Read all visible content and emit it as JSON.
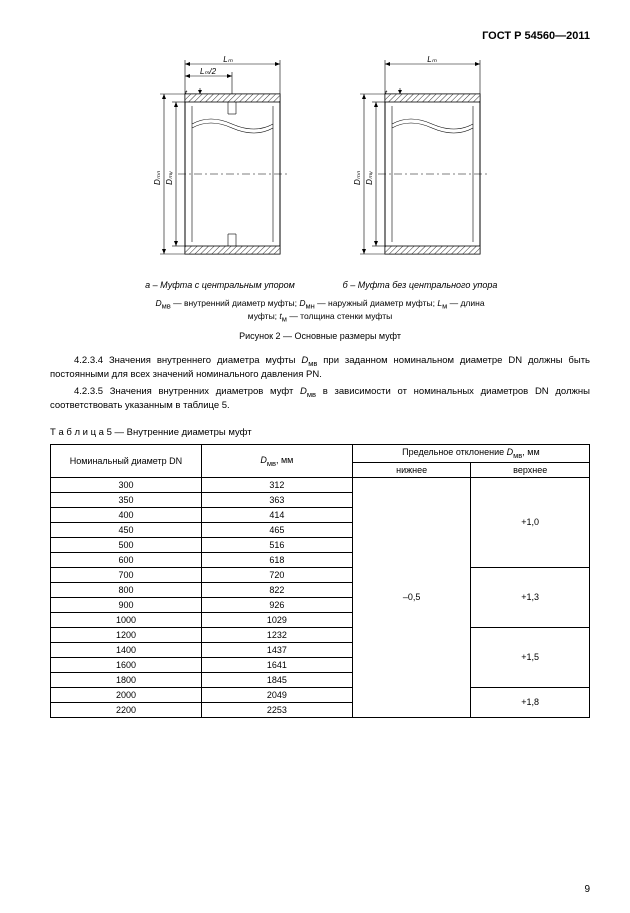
{
  "header": "ГОСТ Р 54560—2011",
  "figures": {
    "a_caption": "а – Муфта с центральным упором",
    "b_caption": "б – Муфта без центрального упора",
    "dim_Lm": "Lₘ",
    "dim_Lm2": "Lₘ/2",
    "dim_tm": "tₘ",
    "dim_Dmn": "Dₘₙ",
    "dim_Dmv": "Dₘᵥ",
    "legend": "Dₘᵥ — внутренний диаметр муфты; Dₘₙ — наружный диаметр муфты; Lₘ — длина муфты; tₘ — толщина стенки муфты",
    "title": "Рисунок 2 — Основные размеры муфт"
  },
  "para1_pre": "4.2.3.4 Значения внутреннего диаметра муфты ",
  "para1_sym": "Dₘᵥ",
  "para1_post": " при заданном номинальном диаметре DN должны быть постоянными для всех значений номинального давления PN.",
  "para2_pre": "4.2.3.5 Значения внутренних диаметров муфт ",
  "para2_sym": "Dₘᵥ",
  "para2_post": " в зависимости от номинальных диаметров DN должны соответствовать указанным в таблице 5.",
  "table_title": "Т а б л и ц а 5 — Внутренние диаметры муфт",
  "table": {
    "head_dn": "Номинальный диаметр DN",
    "head_dmv": "Dₘᵥ, мм",
    "head_dev": "Предельное отклонение Dₘᵥ, мм",
    "head_lower": "нижнее",
    "head_upper": "верхнее",
    "lower_span": "–0,5",
    "upper1": "+1,0",
    "upper2": "+1,3",
    "upper3": "+1,5",
    "upper4": "+1,8",
    "rows": [
      {
        "dn": "300",
        "dmv": "312"
      },
      {
        "dn": "350",
        "dmv": "363"
      },
      {
        "dn": "400",
        "dmv": "414"
      },
      {
        "dn": "450",
        "dmv": "465"
      },
      {
        "dn": "500",
        "dmv": "516"
      },
      {
        "dn": "600",
        "dmv": "618"
      },
      {
        "dn": "700",
        "dmv": "720"
      },
      {
        "dn": "800",
        "dmv": "822"
      },
      {
        "dn": "900",
        "dmv": "926"
      },
      {
        "dn": "1000",
        "dmv": "1029"
      },
      {
        "dn": "1200",
        "dmv": "1232"
      },
      {
        "dn": "1400",
        "dmv": "1437"
      },
      {
        "dn": "1600",
        "dmv": "1641"
      },
      {
        "dn": "1800",
        "dmv": "1845"
      },
      {
        "dn": "2000",
        "dmv": "2049"
      },
      {
        "dn": "2200",
        "dmv": "2253"
      }
    ]
  },
  "pagenum": "9"
}
